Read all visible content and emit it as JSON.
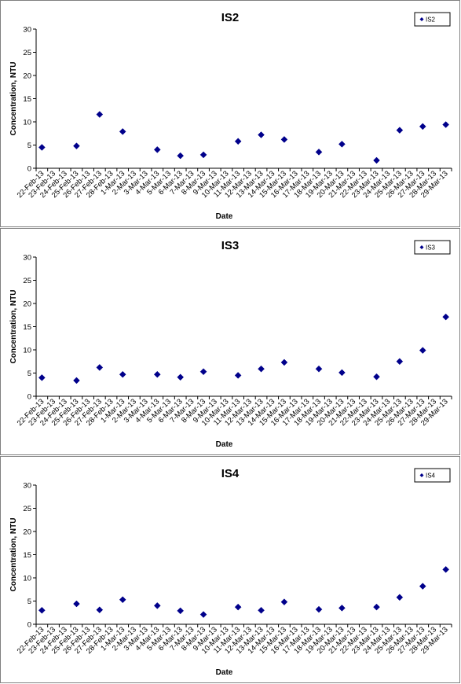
{
  "chart_data": [
    {
      "type": "scatter",
      "title": "IS2",
      "xlabel": "Date",
      "ylabel": "Concentration, NTU",
      "ylim": [
        0,
        30
      ],
      "yticks": [
        "0",
        "5",
        "10",
        "15",
        "20",
        "25",
        "30"
      ],
      "x_categories": [
        "22-Feb-13",
        "23-Feb-13",
        "24-Feb-13",
        "25-Feb-13",
        "26-Feb-13",
        "27-Feb-13",
        "28-Feb-13",
        "1-Mar-13",
        "2-Mar-13",
        "3-Mar-13",
        "4-Mar-13",
        "5-Mar-13",
        "6-Mar-13",
        "7-Mar-13",
        "8-Mar-13",
        "9-Mar-13",
        "10-Mar-13",
        "11-Mar-13",
        "12-Mar-13",
        "13-Mar-13",
        "14-Mar-13",
        "15-Mar-13",
        "16-Mar-13",
        "17-Mar-13",
        "18-Mar-13",
        "19-Mar-13",
        "20-Mar-13",
        "21-Mar-13",
        "22-Mar-13",
        "23-Mar-13",
        "24-Mar-13",
        "25-Mar-13",
        "26-Mar-13",
        "27-Mar-13",
        "28-Mar-13",
        "29-Mar-13"
      ],
      "grid": false,
      "legend_position": "top-right",
      "color": "#00008B",
      "series": [
        {
          "name": "IS2",
          "points": [
            {
              "x": "22-Feb-13",
              "y": 4.5
            },
            {
              "x": "25-Feb-13",
              "y": 4.8
            },
            {
              "x": "27-Feb-13",
              "y": 11.6
            },
            {
              "x": "1-Mar-13",
              "y": 7.9
            },
            {
              "x": "4-Mar-13",
              "y": 4.0
            },
            {
              "x": "6-Mar-13",
              "y": 2.7
            },
            {
              "x": "8-Mar-13",
              "y": 2.9
            },
            {
              "x": "11-Mar-13",
              "y": 5.8
            },
            {
              "x": "13-Mar-13",
              "y": 7.2
            },
            {
              "x": "15-Mar-13",
              "y": 6.2
            },
            {
              "x": "18-Mar-13",
              "y": 3.5
            },
            {
              "x": "20-Mar-13",
              "y": 5.2
            },
            {
              "x": "23-Mar-13",
              "y": 1.7
            },
            {
              "x": "25-Mar-13",
              "y": 8.2
            },
            {
              "x": "27-Mar-13",
              "y": 9.0
            },
            {
              "x": "29-Mar-13",
              "y": 9.4
            }
          ]
        }
      ]
    },
    {
      "type": "scatter",
      "title": "IS3",
      "xlabel": "Date",
      "ylabel": "Concentration, NTU",
      "ylim": [
        0,
        30
      ],
      "yticks": [
        "0",
        "5",
        "10",
        "15",
        "20",
        "25",
        "30"
      ],
      "x_categories": [
        "22-Feb-13",
        "23-Feb-13",
        "24-Feb-13",
        "25-Feb-13",
        "26-Feb-13",
        "27-Feb-13",
        "28-Feb-13",
        "1-Mar-13",
        "2-Mar-13",
        "3-Mar-13",
        "4-Mar-13",
        "5-Mar-13",
        "6-Mar-13",
        "7-Mar-13",
        "8-Mar-13",
        "9-Mar-13",
        "10-Mar-13",
        "11-Mar-13",
        "12-Mar-13",
        "13-Mar-13",
        "14-Mar-13",
        "15-Mar-13",
        "16-Mar-13",
        "17-Mar-13",
        "18-Mar-13",
        "19-Mar-13",
        "20-Mar-13",
        "21-Mar-13",
        "22-Mar-13",
        "23-Mar-13",
        "24-Mar-13",
        "25-Mar-13",
        "26-Mar-13",
        "27-Mar-13",
        "28-Mar-13",
        "29-Mar-13"
      ],
      "grid": false,
      "legend_position": "top-right",
      "color": "#00008B",
      "series": [
        {
          "name": "IS3",
          "points": [
            {
              "x": "22-Feb-13",
              "y": 4.0
            },
            {
              "x": "25-Feb-13",
              "y": 3.4
            },
            {
              "x": "27-Feb-13",
              "y": 6.2
            },
            {
              "x": "1-Mar-13",
              "y": 4.7
            },
            {
              "x": "4-Mar-13",
              "y": 4.7
            },
            {
              "x": "6-Mar-13",
              "y": 4.1
            },
            {
              "x": "8-Mar-13",
              "y": 5.3
            },
            {
              "x": "11-Mar-13",
              "y": 4.5
            },
            {
              "x": "13-Mar-13",
              "y": 5.9
            },
            {
              "x": "15-Mar-13",
              "y": 7.3
            },
            {
              "x": "18-Mar-13",
              "y": 5.9
            },
            {
              "x": "20-Mar-13",
              "y": 5.1
            },
            {
              "x": "23-Mar-13",
              "y": 4.2
            },
            {
              "x": "25-Mar-13",
              "y": 7.5
            },
            {
              "x": "27-Mar-13",
              "y": 9.9
            },
            {
              "x": "29-Mar-13",
              "y": 17.1
            }
          ]
        }
      ]
    },
    {
      "type": "scatter",
      "title": "IS4",
      "xlabel": "Date",
      "ylabel": "Concentration, NTU",
      "ylim": [
        0,
        30
      ],
      "yticks": [
        "0",
        "5",
        "10",
        "15",
        "20",
        "25",
        "30"
      ],
      "x_categories": [
        "22-Feb-13",
        "23-Feb-13",
        "24-Feb-13",
        "25-Feb-13",
        "26-Feb-13",
        "27-Feb-13",
        "28-Feb-13",
        "1-Mar-13",
        "2-Mar-13",
        "3-Mar-13",
        "4-Mar-13",
        "5-Mar-13",
        "6-Mar-13",
        "7-Mar-13",
        "8-Mar-13",
        "9-Mar-13",
        "10-Mar-13",
        "11-Mar-13",
        "12-Mar-13",
        "13-Mar-13",
        "14-Mar-13",
        "15-Mar-13",
        "16-Mar-13",
        "17-Mar-13",
        "18-Mar-13",
        "19-Mar-13",
        "20-Mar-13",
        "21-Mar-13",
        "22-Mar-13",
        "23-Mar-13",
        "24-Mar-13",
        "25-Mar-13",
        "26-Mar-13",
        "27-Mar-13",
        "28-Mar-13",
        "29-Mar-13"
      ],
      "grid": false,
      "legend_position": "top-right",
      "color": "#00008B",
      "series": [
        {
          "name": "IS4",
          "points": [
            {
              "x": "22-Feb-13",
              "y": 3.0
            },
            {
              "x": "25-Feb-13",
              "y": 4.4
            },
            {
              "x": "27-Feb-13",
              "y": 3.1
            },
            {
              "x": "1-Mar-13",
              "y": 5.3
            },
            {
              "x": "4-Mar-13",
              "y": 4.0
            },
            {
              "x": "6-Mar-13",
              "y": 2.9
            },
            {
              "x": "8-Mar-13",
              "y": 2.1
            },
            {
              "x": "11-Mar-13",
              "y": 3.7
            },
            {
              "x": "13-Mar-13",
              "y": 3.0
            },
            {
              "x": "15-Mar-13",
              "y": 4.8
            },
            {
              "x": "18-Mar-13",
              "y": 3.2
            },
            {
              "x": "20-Mar-13",
              "y": 3.5
            },
            {
              "x": "23-Mar-13",
              "y": 3.7
            },
            {
              "x": "25-Mar-13",
              "y": 5.8
            },
            {
              "x": "27-Mar-13",
              "y": 8.2
            },
            {
              "x": "29-Mar-13",
              "y": 11.8
            }
          ]
        }
      ]
    }
  ]
}
